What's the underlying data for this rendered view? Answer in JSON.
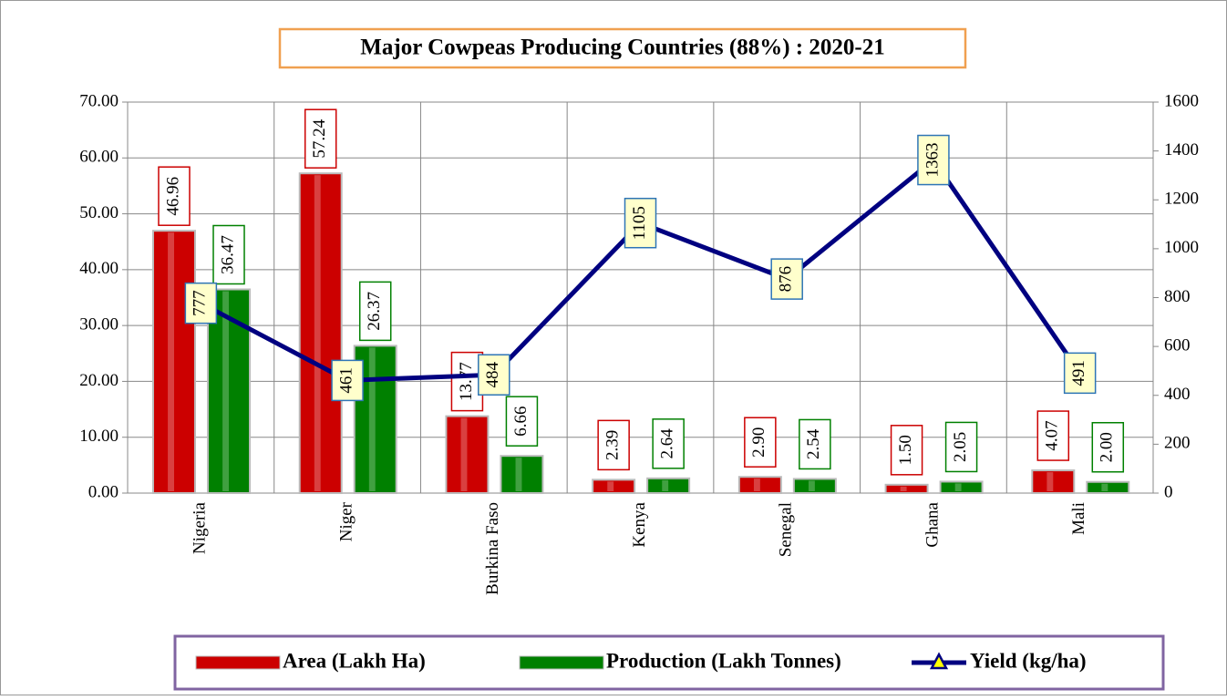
{
  "chart_data": {
    "type": "bar_line",
    "title": "Major Cowpeas Producing Countries (88%) : 2020-21",
    "categories": [
      "Nigeria",
      "Niger",
      "Burkina Faso",
      "Kenya",
      "Senegal",
      "Ghana",
      "Mali"
    ],
    "series": [
      {
        "name": "Area (Lakh Ha)",
        "type": "bar",
        "color": "#cc0000",
        "values": [
          46.96,
          57.24,
          13.77,
          2.39,
          2.9,
          1.5,
          4.07
        ],
        "value_labels": [
          "46.96",
          "57.24",
          "13.77",
          "2.39",
          "2.90",
          "1.50",
          "4.07"
        ]
      },
      {
        "name": "Production (Lakh Tonnes)",
        "type": "bar",
        "color": "#008000",
        "values": [
          36.47,
          26.37,
          6.66,
          2.64,
          2.54,
          2.05,
          2.0
        ],
        "value_labels": [
          "36.47",
          "26.37",
          "6.66",
          "2.64",
          "2.54",
          "2.05",
          "2.00"
        ]
      },
      {
        "name": "Yield (kg/ha)",
        "type": "line",
        "axis": "y2",
        "color": "#000080",
        "values": [
          777,
          461,
          484,
          1105,
          876,
          1363,
          491
        ]
      }
    ],
    "ylim": [
      0,
      70
    ],
    "yticks": [
      {
        "value": 0,
        "label": "0.00"
      },
      {
        "value": 10,
        "label": "10.00"
      },
      {
        "value": 20,
        "label": "20.00"
      },
      {
        "value": 30,
        "label": "30.00"
      },
      {
        "value": 40,
        "label": "40.00"
      },
      {
        "value": 50,
        "label": "50.00"
      },
      {
        "value": 60,
        "label": "60.00"
      },
      {
        "value": 70,
        "label": "70.00"
      }
    ],
    "y2lim": [
      0,
      1600
    ],
    "y2ticks": [
      0,
      200,
      400,
      600,
      800,
      1000,
      1200,
      1400,
      1600
    ],
    "grid": true,
    "legend": "bottom"
  }
}
